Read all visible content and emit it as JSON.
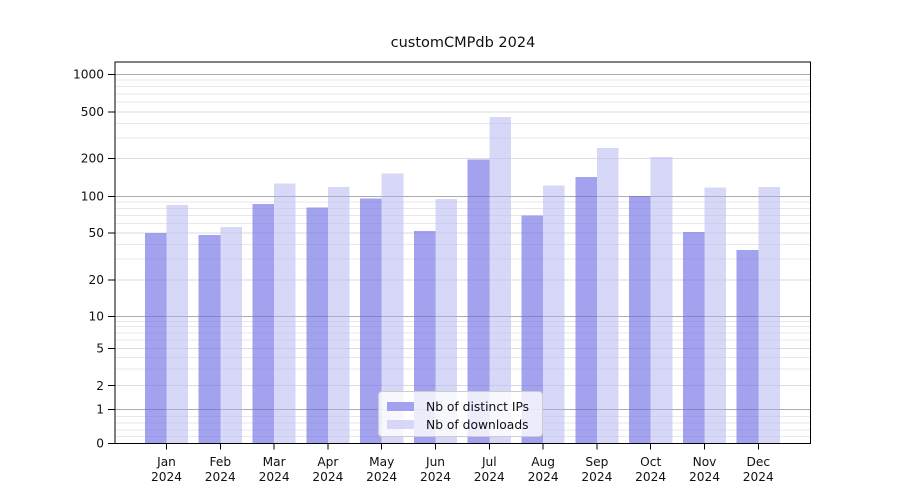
{
  "chart_data": {
    "type": "bar",
    "title": "customCMPdb 2024",
    "categories": [
      "Jan",
      "Feb",
      "Mar",
      "Apr",
      "May",
      "Jun",
      "Jul",
      "Aug",
      "Sep",
      "Oct",
      "Nov",
      "Dec"
    ],
    "x_year_label": "2024",
    "series": [
      {
        "name": "Nb of distinct IPs",
        "color": "#8b8bea",
        "values": [
          50,
          48,
          87,
          81,
          96,
          52,
          196,
          70,
          143,
          101,
          51,
          36
        ]
      },
      {
        "name": "Nb of downloads",
        "color": "#cdcdf6",
        "values": [
          85,
          56,
          127,
          119,
          152,
          95,
          455,
          122,
          246,
          205,
          118,
          119
        ]
      }
    ],
    "bar_alpha": 0.8,
    "yscale": "symlog (log above 1, linear 0-1)",
    "yticks": [
      0,
      1,
      2,
      5,
      10,
      20,
      50,
      100,
      200,
      500,
      1000
    ],
    "ylim": [
      0,
      1300
    ],
    "grid": true,
    "legend_position": "lower center",
    "colors": {
      "background": "#ffffff",
      "major_grid": "#c9c9cd",
      "minor_grid": "#f0f0f2",
      "spine": "#000000",
      "text": "#111111"
    }
  }
}
